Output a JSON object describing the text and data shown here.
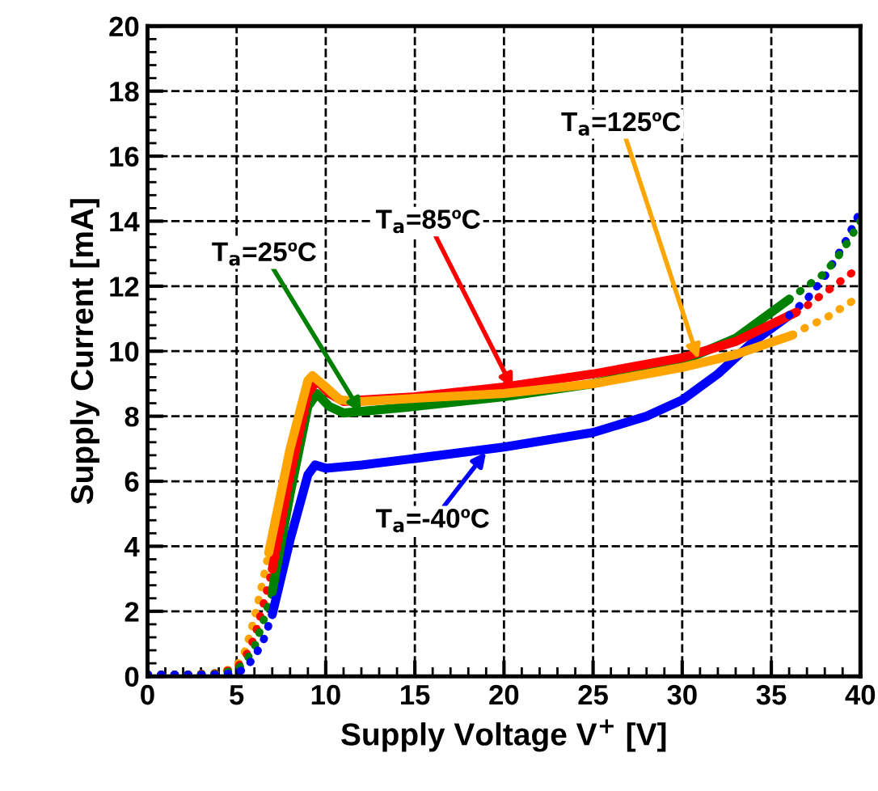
{
  "chart_data": {
    "type": "line",
    "xlabel": "Supply Voltage V$^{+}$ [V]",
    "ylabel": "Supply Current [mA]",
    "xlim": [
      0,
      40
    ],
    "ylim": [
      0,
      20
    ],
    "xticks": [
      0,
      5,
      10,
      15,
      20,
      25,
      30,
      35,
      40
    ],
    "yticks": [
      0,
      2,
      4,
      6,
      8,
      10,
      12,
      14,
      16,
      18,
      20
    ],
    "grid": true,
    "legend": false,
    "marker": "none",
    "series": [
      {
        "color": "#ffa500",
        "line_style": "dotted",
        "x": [
          0,
          2,
          4,
          5,
          5.5,
          6,
          6.5,
          6.8
        ],
        "values": [
          0.05,
          0.05,
          0.1,
          0.3,
          0.8,
          1.8,
          3.0,
          3.8
        ]
      },
      {
        "color": "#ff0000",
        "line_style": "dotted",
        "x": [
          0,
          2,
          4,
          5,
          5.5,
          6,
          6.5,
          7.0
        ],
        "values": [
          0.05,
          0.05,
          0.1,
          0.25,
          0.6,
          1.2,
          2.2,
          3.3
        ]
      },
      {
        "color": "#008000",
        "line_style": "dotted",
        "x": [
          0,
          2,
          4,
          5,
          5.5,
          6,
          6.5,
          7.0
        ],
        "values": [
          0.05,
          0.05,
          0.08,
          0.2,
          0.45,
          0.9,
          1.7,
          2.6
        ]
      },
      {
        "color": "#0000ff",
        "line_style": "dotted",
        "x": [
          0,
          2,
          4,
          5,
          5.5,
          6,
          6.5,
          7.0
        ],
        "values": [
          0.05,
          0.05,
          0.05,
          0.1,
          0.25,
          0.6,
          1.1,
          1.9
        ]
      },
      {
        "color": "#0000ff",
        "line_style": "solid",
        "x": [
          7.0,
          8.0,
          9.0,
          9.4,
          10,
          12,
          15,
          20,
          25,
          28,
          30,
          32,
          34,
          36
        ],
        "values": [
          1.9,
          4.2,
          6.2,
          6.5,
          6.4,
          6.5,
          6.7,
          7.05,
          7.5,
          8.0,
          8.5,
          9.3,
          10.3,
          11.1
        ]
      },
      {
        "color": "#008000",
        "line_style": "solid",
        "x": [
          7.0,
          8.0,
          9.0,
          9.5,
          10.2,
          11,
          12,
          15,
          20,
          25,
          30,
          33,
          36
        ],
        "values": [
          2.6,
          5.6,
          8.3,
          8.7,
          8.3,
          8.1,
          8.15,
          8.3,
          8.6,
          9.0,
          9.7,
          10.4,
          11.6
        ]
      },
      {
        "color": "#ff0000",
        "line_style": "solid",
        "x": [
          7.0,
          8.0,
          9.0,
          9.5,
          10.2,
          11,
          12,
          15,
          20,
          25,
          30,
          33,
          36.4
        ],
        "values": [
          3.3,
          6.2,
          8.7,
          9.1,
          8.7,
          8.45,
          8.5,
          8.6,
          8.9,
          9.3,
          9.8,
          10.3,
          11.2
        ]
      },
      {
        "color": "#ffa500",
        "line_style": "solid",
        "x": [
          6.8,
          8.0,
          9.0,
          9.25,
          10,
          10.8,
          12,
          15,
          20,
          25,
          30,
          33,
          36.2
        ],
        "values": [
          3.8,
          7.0,
          9.1,
          9.25,
          8.9,
          8.5,
          8.45,
          8.55,
          8.7,
          9.0,
          9.5,
          9.9,
          10.5
        ]
      },
      {
        "color": "#0000ff",
        "line_style": "dotted",
        "x": [
          36,
          37,
          38,
          39,
          40
        ],
        "values": [
          11.1,
          11.6,
          12.3,
          13.2,
          14.3
        ]
      },
      {
        "color": "#008000",
        "line_style": "dotted",
        "x": [
          36,
          37,
          38,
          39,
          40
        ],
        "values": [
          11.6,
          12.0,
          12.4,
          13.1,
          14.0
        ]
      },
      {
        "color": "#ff0000",
        "line_style": "dotted",
        "x": [
          36.4,
          37,
          38,
          39,
          40
        ],
        "values": [
          11.2,
          11.4,
          11.8,
          12.2,
          12.6
        ]
      },
      {
        "color": "#ffa500",
        "line_style": "dotted",
        "x": [
          36.2,
          37,
          38,
          39,
          40
        ],
        "values": [
          10.5,
          10.75,
          11.0,
          11.35,
          11.7
        ]
      }
    ],
    "annotations": [
      {
        "text": "T$_{a}$=25ºC",
        "x": 12,
        "y": 8.1
      },
      {
        "text": "T$_{a}$=85ºC",
        "x": 20.5,
        "y": 8.85
      },
      {
        "text": "T$_{a}$=125ºC",
        "x": 30.9,
        "y": 9.75
      },
      {
        "text": "T$_{a}$=-40ºC",
        "x": 19,
        "y": 6.9
      }
    ]
  }
}
